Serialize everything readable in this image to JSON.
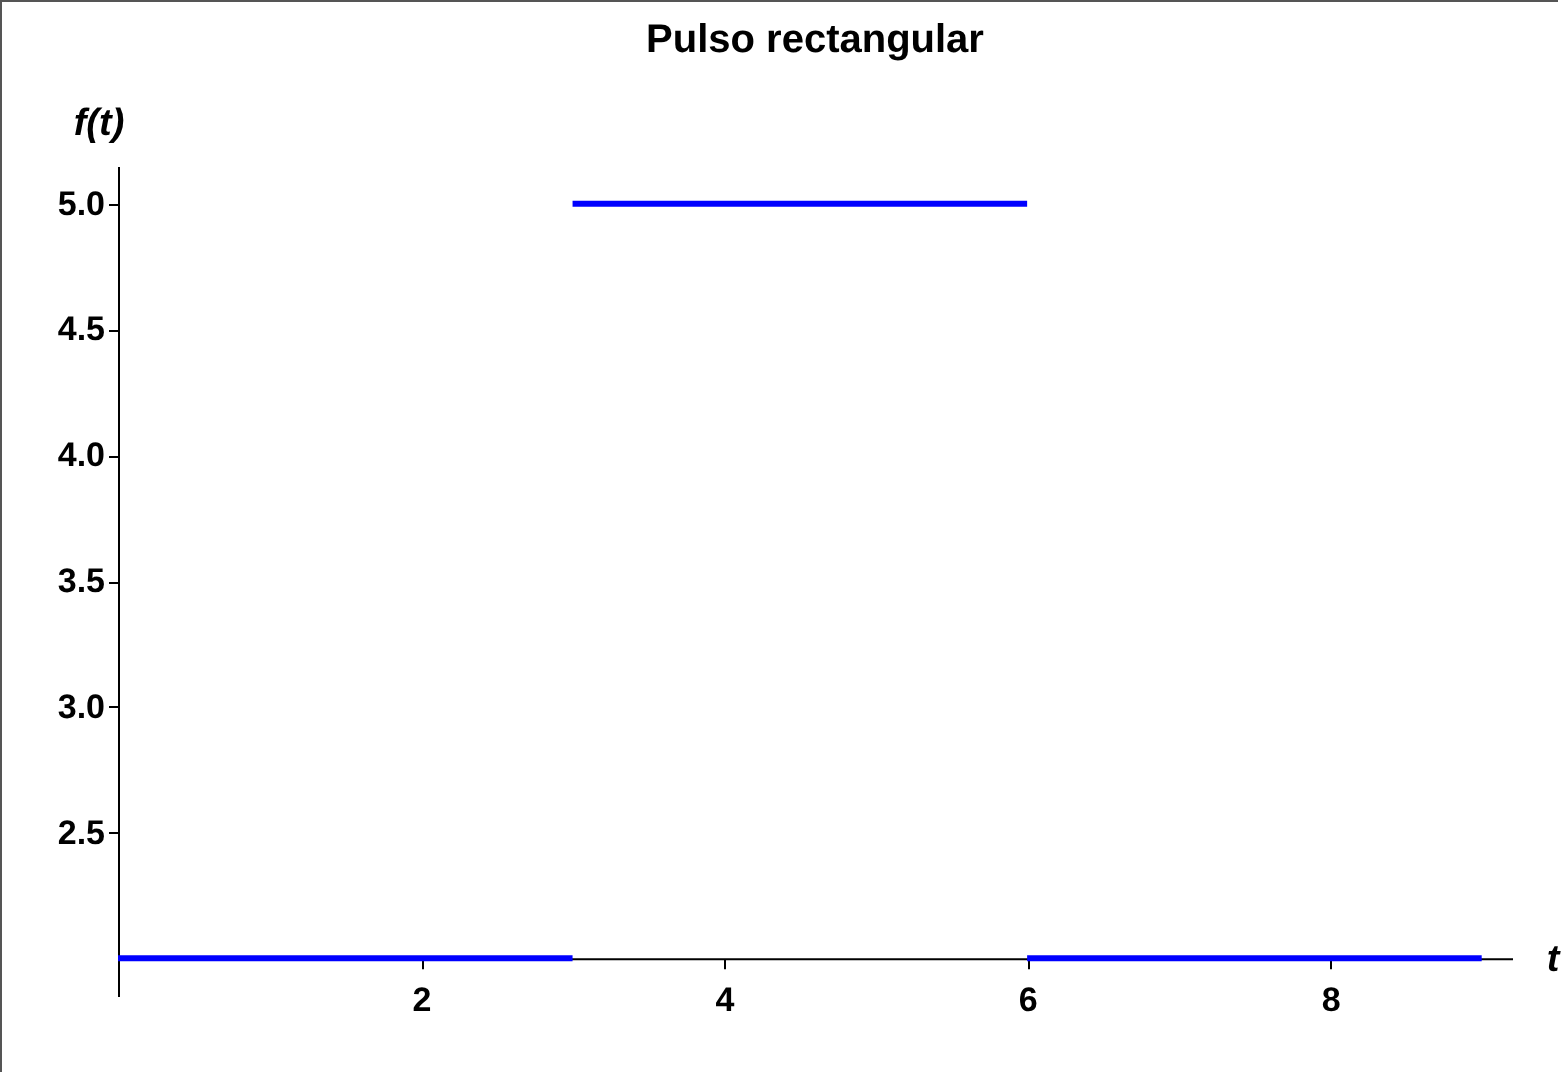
{
  "chart_data": {
    "type": "line",
    "title": "Pulso rectangular",
    "xlabel": "t",
    "ylabel": "f(t)",
    "xlim": [
      0,
      9.2
    ],
    "xticks": [
      2,
      4,
      6,
      8
    ],
    "ylim": [
      1.85,
      5.15
    ],
    "yticks": [
      2.5,
      {
        "value": 3,
        "label": "3.0"
      },
      3.5,
      {
        "value": 4,
        "label": "4.0"
      },
      4.5,
      {
        "value": 5,
        "label": "5.0"
      }
    ],
    "grid": false,
    "legend": false,
    "series": [
      {
        "color": "#0000ff",
        "x": [
          0,
          3
        ],
        "values": [
          2,
          2
        ]
      },
      {
        "color": "#0000ff",
        "x": [
          3,
          6
        ],
        "values": [
          5,
          5
        ]
      },
      {
        "color": "#0000ff",
        "x": [
          6,
          9
        ],
        "values": [
          2,
          2
        ]
      }
    ]
  }
}
